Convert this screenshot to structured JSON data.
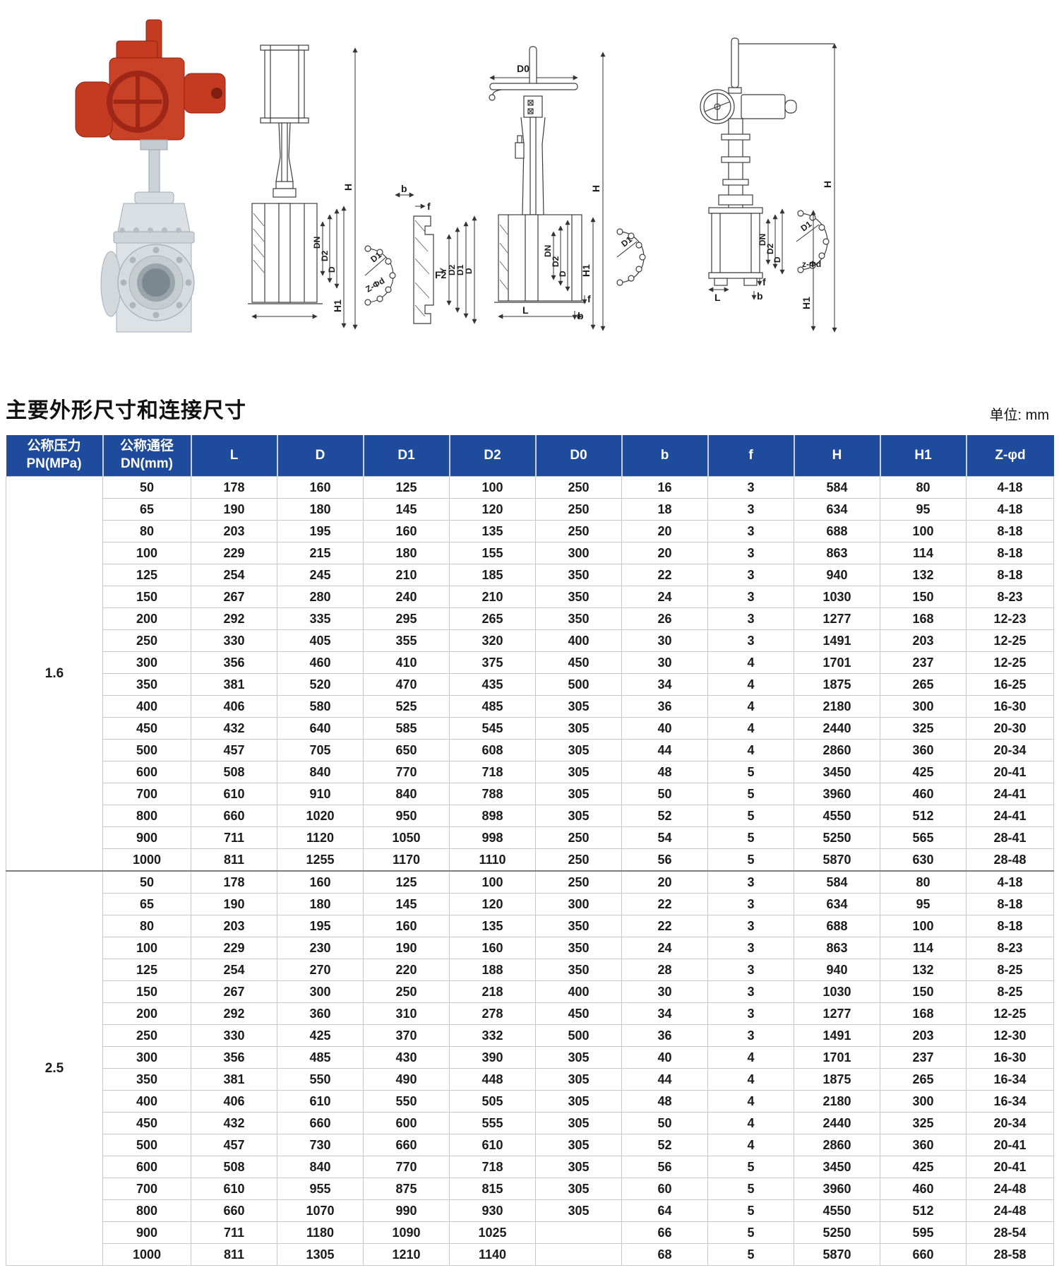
{
  "page": {
    "title": "主要外形尺寸和连接尺寸",
    "unit_label": "单位: mm"
  },
  "colors": {
    "header_bg": "#1E4B9B",
    "actuator_red": "#C43B22",
    "valve_gray": "#D9DEE2"
  },
  "drawings": {
    "view1": {
      "H": "H",
      "DN": "DN",
      "D2": "D2",
      "D": "D",
      "H1": "H1",
      "D1": "D1",
      "Z": "Z-Φd"
    },
    "view2": {
      "b": "b",
      "f": "f",
      "F2": "F2",
      "Y": "Y",
      "D2": "D2",
      "D1": "D1",
      "D": "D"
    },
    "view3": {
      "D0": "D0",
      "H": "H",
      "DN": "DN",
      "D2": "D2",
      "D": "D",
      "D1": "D1",
      "L": "L",
      "f": "f",
      "b": "b",
      "H1": "H1"
    },
    "view4": {
      "H": "H",
      "DN": "DN",
      "D2": "D2",
      "D": "D",
      "D1": "D1",
      "Z": "z-Φd",
      "L": "L",
      "f": "f",
      "b": "b",
      "H1": "H1"
    }
  },
  "table": {
    "headers": [
      {
        "line1": "公称压力",
        "line2": "PN(MPa)"
      },
      {
        "line1": "公称通径",
        "line2": "DN(mm)"
      },
      "L",
      "D",
      "D1",
      "D2",
      "D0",
      "b",
      "f",
      "H",
      "H1",
      "Z-φd"
    ],
    "groups": [
      {
        "pn": "1.6",
        "rows": [
          [
            "50",
            "178",
            "160",
            "125",
            "100",
            "250",
            "16",
            "3",
            "584",
            "80",
            "4-18"
          ],
          [
            "65",
            "190",
            "180",
            "145",
            "120",
            "250",
            "18",
            "3",
            "634",
            "95",
            "4-18"
          ],
          [
            "80",
            "203",
            "195",
            "160",
            "135",
            "250",
            "20",
            "3",
            "688",
            "100",
            "8-18"
          ],
          [
            "100",
            "229",
            "215",
            "180",
            "155",
            "300",
            "20",
            "3",
            "863",
            "114",
            "8-18"
          ],
          [
            "125",
            "254",
            "245",
            "210",
            "185",
            "350",
            "22",
            "3",
            "940",
            "132",
            "8-18"
          ],
          [
            "150",
            "267",
            "280",
            "240",
            "210",
            "350",
            "24",
            "3",
            "1030",
            "150",
            "8-23"
          ],
          [
            "200",
            "292",
            "335",
            "295",
            "265",
            "350",
            "26",
            "3",
            "1277",
            "168",
            "12-23"
          ],
          [
            "250",
            "330",
            "405",
            "355",
            "320",
            "400",
            "30",
            "3",
            "1491",
            "203",
            "12-25"
          ],
          [
            "300",
            "356",
            "460",
            "410",
            "375",
            "450",
            "30",
            "4",
            "1701",
            "237",
            "12-25"
          ],
          [
            "350",
            "381",
            "520",
            "470",
            "435",
            "500",
            "34",
            "4",
            "1875",
            "265",
            "16-25"
          ],
          [
            "400",
            "406",
            "580",
            "525",
            "485",
            "305",
            "36",
            "4",
            "2180",
            "300",
            "16-30"
          ],
          [
            "450",
            "432",
            "640",
            "585",
            "545",
            "305",
            "40",
            "4",
            "2440",
            "325",
            "20-30"
          ],
          [
            "500",
            "457",
            "705",
            "650",
            "608",
            "305",
            "44",
            "4",
            "2860",
            "360",
            "20-34"
          ],
          [
            "600",
            "508",
            "840",
            "770",
            "718",
            "305",
            "48",
            "5",
            "3450",
            "425",
            "20-41"
          ],
          [
            "700",
            "610",
            "910",
            "840",
            "788",
            "305",
            "50",
            "5",
            "3960",
            "460",
            "24-41"
          ],
          [
            "800",
            "660",
            "1020",
            "950",
            "898",
            "305",
            "52",
            "5",
            "4550",
            "512",
            "24-41"
          ],
          [
            "900",
            "711",
            "1120",
            "1050",
            "998",
            "250",
            "54",
            "5",
            "5250",
            "565",
            "28-41"
          ],
          [
            "1000",
            "811",
            "1255",
            "1170",
            "1110",
            "250",
            "56",
            "5",
            "5870",
            "630",
            "28-48"
          ]
        ]
      },
      {
        "pn": "2.5",
        "rows": [
          [
            "50",
            "178",
            "160",
            "125",
            "100",
            "250",
            "20",
            "3",
            "584",
            "80",
            "4-18"
          ],
          [
            "65",
            "190",
            "180",
            "145",
            "120",
            "300",
            "22",
            "3",
            "634",
            "95",
            "8-18"
          ],
          [
            "80",
            "203",
            "195",
            "160",
            "135",
            "350",
            "22",
            "3",
            "688",
            "100",
            "8-18"
          ],
          [
            "100",
            "229",
            "230",
            "190",
            "160",
            "350",
            "24",
            "3",
            "863",
            "114",
            "8-23"
          ],
          [
            "125",
            "254",
            "270",
            "220",
            "188",
            "350",
            "28",
            "3",
            "940",
            "132",
            "8-25"
          ],
          [
            "150",
            "267",
            "300",
            "250",
            "218",
            "400",
            "30",
            "3",
            "1030",
            "150",
            "8-25"
          ],
          [
            "200",
            "292",
            "360",
            "310",
            "278",
            "450",
            "34",
            "3",
            "1277",
            "168",
            "12-25"
          ],
          [
            "250",
            "330",
            "425",
            "370",
            "332",
            "500",
            "36",
            "3",
            "1491",
            "203",
            "12-30"
          ],
          [
            "300",
            "356",
            "485",
            "430",
            "390",
            "305",
            "40",
            "4",
            "1701",
            "237",
            "16-30"
          ],
          [
            "350",
            "381",
            "550",
            "490",
            "448",
            "305",
            "44",
            "4",
            "1875",
            "265",
            "16-34"
          ],
          [
            "400",
            "406",
            "610",
            "550",
            "505",
            "305",
            "48",
            "4",
            "2180",
            "300",
            "16-34"
          ],
          [
            "450",
            "432",
            "660",
            "600",
            "555",
            "305",
            "50",
            "4",
            "2440",
            "325",
            "20-34"
          ],
          [
            "500",
            "457",
            "730",
            "660",
            "610",
            "305",
            "52",
            "4",
            "2860",
            "360",
            "20-41"
          ],
          [
            "600",
            "508",
            "840",
            "770",
            "718",
            "305",
            "56",
            "5",
            "3450",
            "425",
            "20-41"
          ],
          [
            "700",
            "610",
            "955",
            "875",
            "815",
            "305",
            "60",
            "5",
            "3960",
            "460",
            "24-48"
          ],
          [
            "800",
            "660",
            "1070",
            "990",
            "930",
            "305",
            "64",
            "5",
            "4550",
            "512",
            "24-48"
          ],
          [
            "900",
            "711",
            "1180",
            "1090",
            "1025",
            "",
            "66",
            "5",
            "5250",
            "595",
            "28-54"
          ],
          [
            "1000",
            "811",
            "1305",
            "1210",
            "1140",
            "",
            "68",
            "5",
            "5870",
            "660",
            "28-58"
          ]
        ]
      }
    ]
  }
}
